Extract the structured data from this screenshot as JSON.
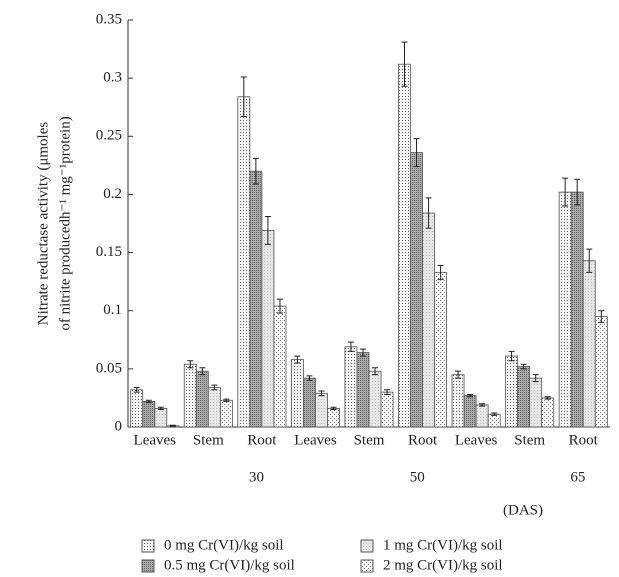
{
  "chart_data": {
    "type": "bar",
    "y_label": [
      "Nitrate reductase activity (μmoles",
      "of nitrite producedh⁻¹ mg⁻¹protein)"
    ],
    "x_label": "(DAS)",
    "categories": [
      "Leaves",
      "Stem",
      "Root",
      "Leaves",
      "Stem",
      "Root",
      "Leaves",
      "Stem",
      "Root"
    ],
    "group_labels": [
      "30",
      "50",
      "65"
    ],
    "series": [
      {
        "name": "0 mg Cr(VI)/kg soil",
        "color": "#555555",
        "pattern": "dense-dots",
        "values": [
          0.032,
          0.054,
          0.284,
          0.058,
          0.069,
          0.312,
          0.045,
          0.061,
          0.202
        ],
        "errors": [
          0.002,
          0.003,
          0.017,
          0.003,
          0.004,
          0.019,
          0.003,
          0.004,
          0.012
        ]
      },
      {
        "name": "0.5 mg Cr(VI)/kg soil",
        "color": "#555555",
        "pattern": "dark",
        "values": [
          0.022,
          0.048,
          0.22,
          0.042,
          0.064,
          0.236,
          0.027,
          0.052,
          0.202
        ],
        "errors": [
          0.001,
          0.003,
          0.011,
          0.002,
          0.003,
          0.012,
          0.001,
          0.002,
          0.011
        ]
      },
      {
        "name": "1 mg Cr(VI)/kg soil",
        "color": "#555555",
        "pattern": "light",
        "values": [
          0.016,
          0.034,
          0.169,
          0.029,
          0.048,
          0.184,
          0.019,
          0.042,
          0.143
        ],
        "errors": [
          0.001,
          0.002,
          0.012,
          0.002,
          0.003,
          0.013,
          0.001,
          0.003,
          0.01
        ]
      },
      {
        "name": "2 mg Cr(VI)/kg soil",
        "color": "#555555",
        "pattern": "sparse-dots",
        "values": [
          0.001,
          0.023,
          0.104,
          0.016,
          0.03,
          0.133,
          0.011,
          0.025,
          0.095
        ],
        "errors": [
          0.0005,
          0.001,
          0.006,
          0.001,
          0.002,
          0.006,
          0.001,
          0.001,
          0.005
        ]
      }
    ],
    "ylim": [
      0,
      0.35
    ],
    "yticks": [
      0,
      0.05,
      0.1,
      0.15,
      0.2,
      0.25,
      0.3,
      0.35
    ]
  }
}
